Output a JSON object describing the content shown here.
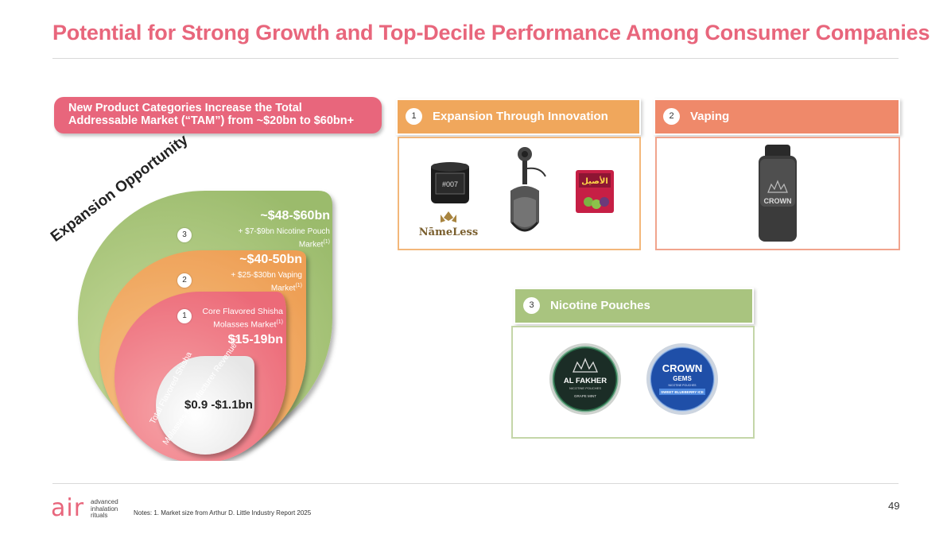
{
  "title": "Potential for Strong Growth and Top-Decile Performance Among Consumer Companies",
  "pill": "New Product Categories Increase the Total\nAddressable Market (“TAM”) from ~$20bn to $60bn+",
  "expansion_label": "Expansion Opportunity",
  "rings": {
    "r3": {
      "num": "3",
      "value": "~$48-$60bn",
      "desc": "+ $7-$9bn Nicotine Pouch Market",
      "sup": "(1)"
    },
    "r2": {
      "num": "2",
      "value": "~$40-50bn",
      "desc": "+ $25-$30bn Vaping Market",
      "sup": "(1)"
    },
    "r1": {
      "num": "1",
      "desc": "Core Flavored Shisha Molasses Market",
      "sup": "(1)",
      "value": "$15-19bn"
    },
    "core": {
      "arc_line1": "Total Flavored Shisha",
      "arc_line2": "Molasses Manufacturer Revenue",
      "sup": "(1)",
      "value": "$0.9 -$1.1bn"
    }
  },
  "panels": [
    {
      "num": "1",
      "label": "Expansion Through Innovation",
      "color": "#f0a75c",
      "products": {
        "brand": "NāmeLess",
        "tin_label": "#007",
        "pack_text": "الأصيل"
      }
    },
    {
      "num": "2",
      "label": "Vaping",
      "color": "#ef896a",
      "products": {
        "brand": "CROWN"
      }
    },
    {
      "num": "3",
      "label": "Nicotine Pouches",
      "color": "#a9c47f",
      "products": {
        "tin1": {
          "brand": "AL FAKHER",
          "sub": "NICOTINE POUCHES",
          "flavor": "GRAPE MINT"
        },
        "tin2": {
          "brand": "CROWN",
          "sub": "GEMS",
          "small": "NICOTINE POUCHES",
          "flavor": "SWEET BLUEBERRY ICE"
        }
      }
    }
  ],
  "logo": {
    "mark": "air",
    "line1": "advanced",
    "line2": "inhalation",
    "line3": "rituals"
  },
  "notes": "Notes: 1. Market size from Arthur D. Little Industry Report 2025",
  "page_number": "49",
  "colors": {
    "accent": "#e8667c",
    "ring3": "#a9c47f",
    "ring2": "#f0a75c",
    "ring1": "#ef6f7c"
  }
}
